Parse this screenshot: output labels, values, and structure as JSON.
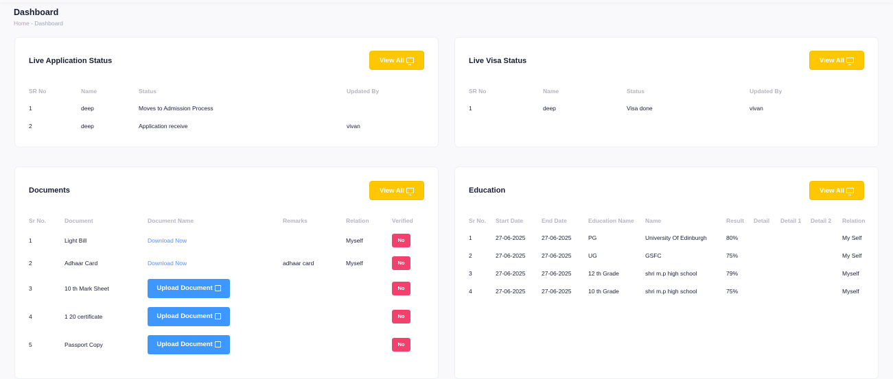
{
  "page": {
    "title": "Dashboard",
    "breadcrumb": [
      "Home",
      "Dashboard"
    ],
    "breadcrumb_sep": "-"
  },
  "view_all_label": "View All",
  "colors": {
    "view_all": "#ffc700",
    "upload": "#3e97ff",
    "no_badge": "#f1416c",
    "link": "#5b8ff9"
  },
  "application": {
    "title": "Live Application Status",
    "headers": [
      "SR No",
      "Name",
      "Status",
      "Updated By"
    ],
    "rows": [
      [
        "1",
        "deep",
        "Moves to Admission Process",
        ""
      ],
      [
        "2",
        "deep",
        "Application receive",
        "vivan"
      ]
    ]
  },
  "visa": {
    "title": "Live Visa Status",
    "headers": [
      "SR No",
      "Name",
      "Status",
      "Updated By"
    ],
    "rows": [
      [
        "1",
        "deep",
        "Visa done",
        "vivan"
      ]
    ]
  },
  "documents": {
    "title": "Documents",
    "headers": [
      "Sr No.",
      "Document",
      "Document Name",
      "Remarks",
      "Relation",
      "Verified"
    ],
    "download_label": "Download Now",
    "upload_label": "Upload Document",
    "rows": [
      {
        "sr": "1",
        "document": "Light Bill",
        "action": "download",
        "remarks": "",
        "relation": "Myself",
        "verified": "No"
      },
      {
        "sr": "2",
        "document": "Adhaar Card",
        "action": "download",
        "remarks": "adhaar card",
        "relation": "Myself",
        "verified": "No"
      },
      {
        "sr": "3",
        "document": "10 th Mark Sheet",
        "action": "upload",
        "remarks": "",
        "relation": "",
        "verified": "No"
      },
      {
        "sr": "4",
        "document": "1 20 certificate",
        "action": "upload",
        "remarks": "",
        "relation": "",
        "verified": "No"
      },
      {
        "sr": "5",
        "document": "Passport Copy",
        "action": "upload",
        "remarks": "",
        "relation": "",
        "verified": "No"
      }
    ]
  },
  "education": {
    "title": "Education",
    "headers": [
      "Sr No.",
      "Start Date",
      "End Date",
      "Education Name",
      "Name",
      "Result",
      "Detail",
      "Detail 1",
      "Detail 2",
      "Relation"
    ],
    "rows": [
      [
        "1",
        "27-06-2025",
        "27-06-2025",
        "PG",
        "University Of Edinburgh",
        "80%",
        "",
        "",
        "",
        "My Self"
      ],
      [
        "2",
        "27-06-2025",
        "27-06-2025",
        "UG",
        "GSFC",
        "75%",
        "",
        "",
        "",
        "My Self"
      ],
      [
        "3",
        "27-06-2025",
        "27-06-2025",
        "12 th Grade",
        "shri m.p high school",
        "79%",
        "",
        "",
        "",
        "Myself"
      ],
      [
        "4",
        "27-06-2025",
        "27-06-2025",
        "10 th Grade",
        "shri m.p high school",
        "75%",
        "",
        "",
        "",
        "Myself"
      ]
    ]
  }
}
